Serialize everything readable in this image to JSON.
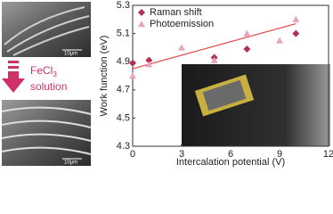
{
  "left_panel": {
    "scale_top": "10μm",
    "scale_bottom": "10μm",
    "reagent": "FeCl",
    "reagent_sub": "3",
    "reagent_suffix": "solution"
  },
  "chart_data": {
    "type": "scatter",
    "xlabel": "Intercalation potential (V)",
    "ylabel": "Work function (eV)",
    "xlim": [
      0,
      12
    ],
    "xticks": [
      0,
      3,
      6,
      9,
      12
    ],
    "ylim": [
      4.3,
      5.3
    ],
    "yticks": [
      4.3,
      4.5,
      4.7,
      4.9,
      5.1,
      5.3
    ],
    "legend": "upper left",
    "series": [
      {
        "name": "Raman shift",
        "color": "#b0305a",
        "marker": "diamond",
        "x": [
          0,
          1,
          5,
          7,
          10
        ],
        "values": [
          4.89,
          4.91,
          4.93,
          4.99,
          5.1
        ]
      },
      {
        "name": "Photoemission",
        "color": "#e8a6bc",
        "marker": "triangle",
        "x": [
          0,
          1,
          3,
          5,
          7,
          9,
          10
        ],
        "values": [
          4.8,
          4.88,
          5.0,
          4.91,
          5.1,
          5.05,
          5.2
        ]
      }
    ],
    "fit": {
      "color": "#e04848",
      "x": [
        0,
        10
      ],
      "values": [
        4.85,
        5.17
      ]
    }
  }
}
